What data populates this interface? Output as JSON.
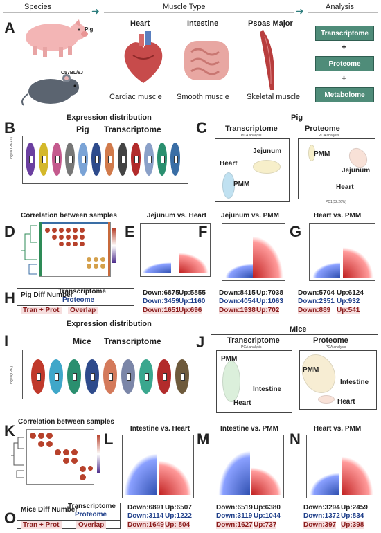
{
  "header": {
    "species": "Species",
    "muscle_type": "Muscle Type",
    "analysis": "Analysis"
  },
  "panelA": {
    "letter": "A",
    "pig_label": "Pig",
    "mouse_label": "C57BL/6J",
    "muscles": [
      {
        "name": "Heart",
        "type": "Cardiac muscle"
      },
      {
        "name": "Intestine",
        "type": "Smooth muscle"
      },
      {
        "name": "Psoas Major",
        "type": "Skeletal muscle"
      }
    ],
    "analysis_boxes": [
      "Transcriptome",
      "Proteome",
      "Metabolome"
    ],
    "plus": "+"
  },
  "panelB": {
    "letter": "B",
    "title": "Expression distribution",
    "subtitle_species": "Pig",
    "subtitle_omics": "Transcriptome",
    "ylabel": "log10(TPM+1)"
  },
  "panelC": {
    "letter": "C",
    "species": "Pig",
    "left": {
      "title": "Transcriptome",
      "sub": "PCA analysis",
      "labels": [
        "Heart",
        "Jejunum",
        "PMM"
      ]
    },
    "right": {
      "title": "Proteome",
      "sub": "PCA analysis",
      "labels": [
        "PMM",
        "Jejunum",
        "Heart"
      ],
      "xlabel": "PC1(52.26%)"
    }
  },
  "panelD": {
    "letter": "D",
    "title": "Correlation between samples"
  },
  "panelE": {
    "letter": "E",
    "title": "Jejunum vs. Heart"
  },
  "panelF": {
    "letter": "F",
    "title": "Jejunum vs. PMM"
  },
  "panelG": {
    "letter": "G",
    "title": "Heart vs. PMM"
  },
  "panelH": {
    "letter": "H",
    "label": "Pig Diff Number",
    "rows": [
      "Transcriptome",
      "Proteome"
    ],
    "tp_label": "Tran + Prot",
    "overlap": "Overlap",
    "cols": [
      {
        "t_down": "Down:6875",
        "t_up": "Up:5855",
        "p_down": "Down:3459",
        "p_up": "Up:1160",
        "o_down": "Down:1651",
        "o_up": "Up:696"
      },
      {
        "t_down": "Down:8415",
        "t_up": "Up:7038",
        "p_down": "Down:4054",
        "p_up": "Up:1063",
        "o_down": "Down:1938",
        "o_up": "Up:702"
      },
      {
        "t_down": "Down:5704",
        "t_up": "Up:6124",
        "p_down": "Down:2351",
        "p_up": "Up:932",
        "o_down": "Down:889",
        "o_up": "Up:541"
      }
    ]
  },
  "panelI": {
    "letter": "I",
    "title": "Expression distribution",
    "subtitle_species": "Mice",
    "subtitle_omics": "Transcriptome",
    "ylabel": "log10(TPM)"
  },
  "panelJ": {
    "letter": "J",
    "species": "Mice",
    "left": {
      "title": "Transcriptome",
      "sub": "PCA analysis",
      "labels": [
        "PMM",
        "Intestine",
        "Heart"
      ]
    },
    "right": {
      "title": "Proteome",
      "sub": "PCA analysis",
      "labels": [
        "PMM",
        "Intestine",
        "Heart"
      ]
    }
  },
  "panelK": {
    "letter": "K",
    "title": "Correlation between samples"
  },
  "panelL": {
    "letter": "L",
    "title": "Intestine vs. Heart"
  },
  "panelM": {
    "letter": "M",
    "title": "Intestine vs. PMM"
  },
  "panelN": {
    "letter": "N",
    "title": "Heart vs. PMM"
  },
  "panelO": {
    "letter": "O",
    "label": "Mice Diff Number",
    "rows": [
      "Transcriptome",
      "Proteome"
    ],
    "tp_label": "Tran + Prot",
    "overlap": "Overlap",
    "cols": [
      {
        "t_down": "Down:6891",
        "t_up": "Up:6507",
        "p_down": "Down:3114",
        "p_up": "Up:1222",
        "o_down": "Down:1649",
        "o_up": "Up: 804"
      },
      {
        "t_down": "Down:6519",
        "t_up": "Up:6380",
        "p_down": "Down:3119",
        "p_up": "Up:1044",
        "o_down": "Down:1627",
        "o_up": "Up:737"
      },
      {
        "t_down": "Down:3294",
        "t_up": "Up:2459",
        "p_down": "Down:1372",
        "p_up": "Up:834",
        "o_down": "Down:397",
        "o_up": "Up:398"
      }
    ]
  },
  "colors": {
    "analysis_box": "#4f8c79",
    "down_red": "#8a1c1c",
    "up_blue": "#1f3f8a",
    "overlap_bg": "#f6dede"
  }
}
